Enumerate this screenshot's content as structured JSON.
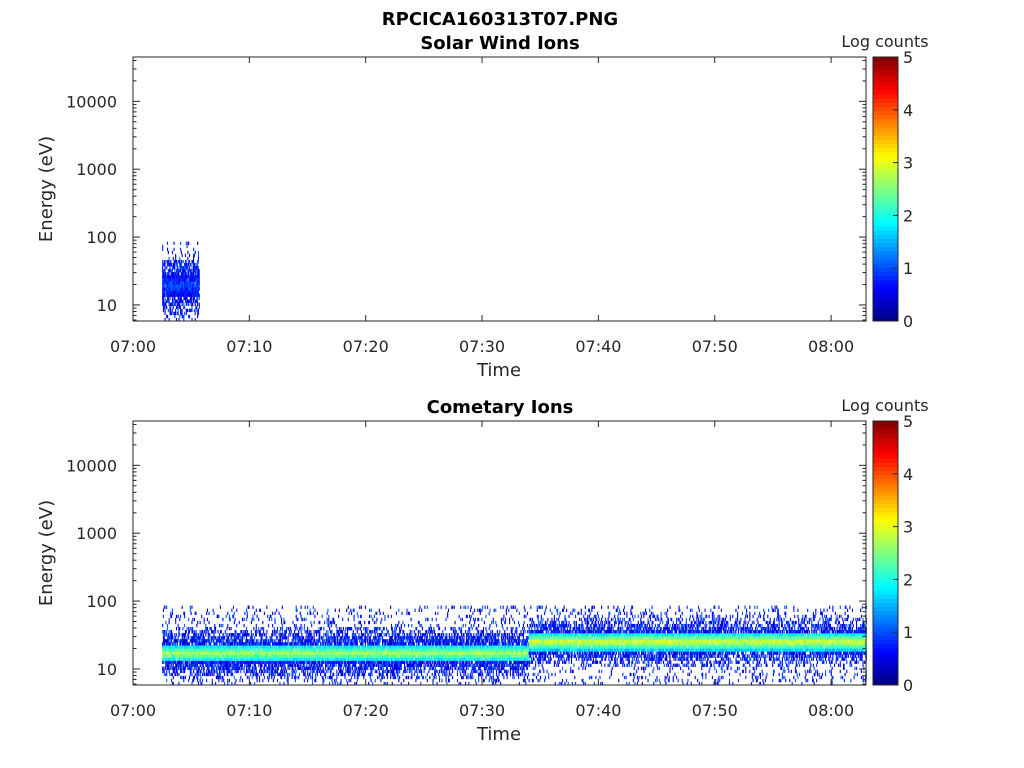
{
  "figure": {
    "title": "RPCICA160313T07.PNG"
  },
  "chart_data": [
    {
      "type": "heatmap",
      "title": "Solar Wind Ions",
      "xlabel": "Time",
      "ylabel": "Energy (eV)",
      "x_ticks": [
        "07:00",
        "07:10",
        "07:20",
        "07:30",
        "07:40",
        "07:50",
        "08:00"
      ],
      "x_range": [
        "07:00",
        "08:03"
      ],
      "y_scale": "log",
      "y_ticks": [
        10,
        100,
        1000,
        10000
      ],
      "y_range": [
        5.8,
        45000
      ],
      "colorbar": {
        "label": "Log counts",
        "ticks": [
          0,
          1,
          2,
          3,
          4,
          5
        ],
        "range": [
          0,
          5
        ],
        "colormap": "jet"
      },
      "data_description_segments": [
        {
          "t_start": "07:02:30",
          "t_end": "07:05:40",
          "energy_core": [
            13,
            27
          ],
          "core_log_counts": 1.0,
          "sparse_energy_max": 80
        }
      ]
    },
    {
      "type": "heatmap",
      "title": "Cometary Ions",
      "xlabel": "Time",
      "ylabel": "Energy (eV)",
      "x_ticks": [
        "07:00",
        "07:10",
        "07:20",
        "07:30",
        "07:40",
        "07:50",
        "08:00"
      ],
      "x_range": [
        "07:00",
        "08:03"
      ],
      "y_scale": "log",
      "y_ticks": [
        10,
        100,
        1000,
        10000
      ],
      "y_range": [
        5.8,
        45000
      ],
      "colorbar": {
        "label": "Log counts",
        "ticks": [
          0,
          1,
          2,
          3,
          4,
          5
        ],
        "range": [
          0,
          5
        ],
        "colormap": "jet"
      },
      "data_description_segments": [
        {
          "t_start": "07:02:30",
          "t_end": "07:34:00",
          "energy_core": [
            12,
            22
          ],
          "core_log_counts": 2.7,
          "sparse_energy_max": 80
        },
        {
          "t_start": "07:34:00",
          "t_end": "08:03:00",
          "energy_core": [
            18,
            32
          ],
          "core_log_counts": 3.0,
          "sparse_energy_max": 80
        }
      ]
    }
  ]
}
